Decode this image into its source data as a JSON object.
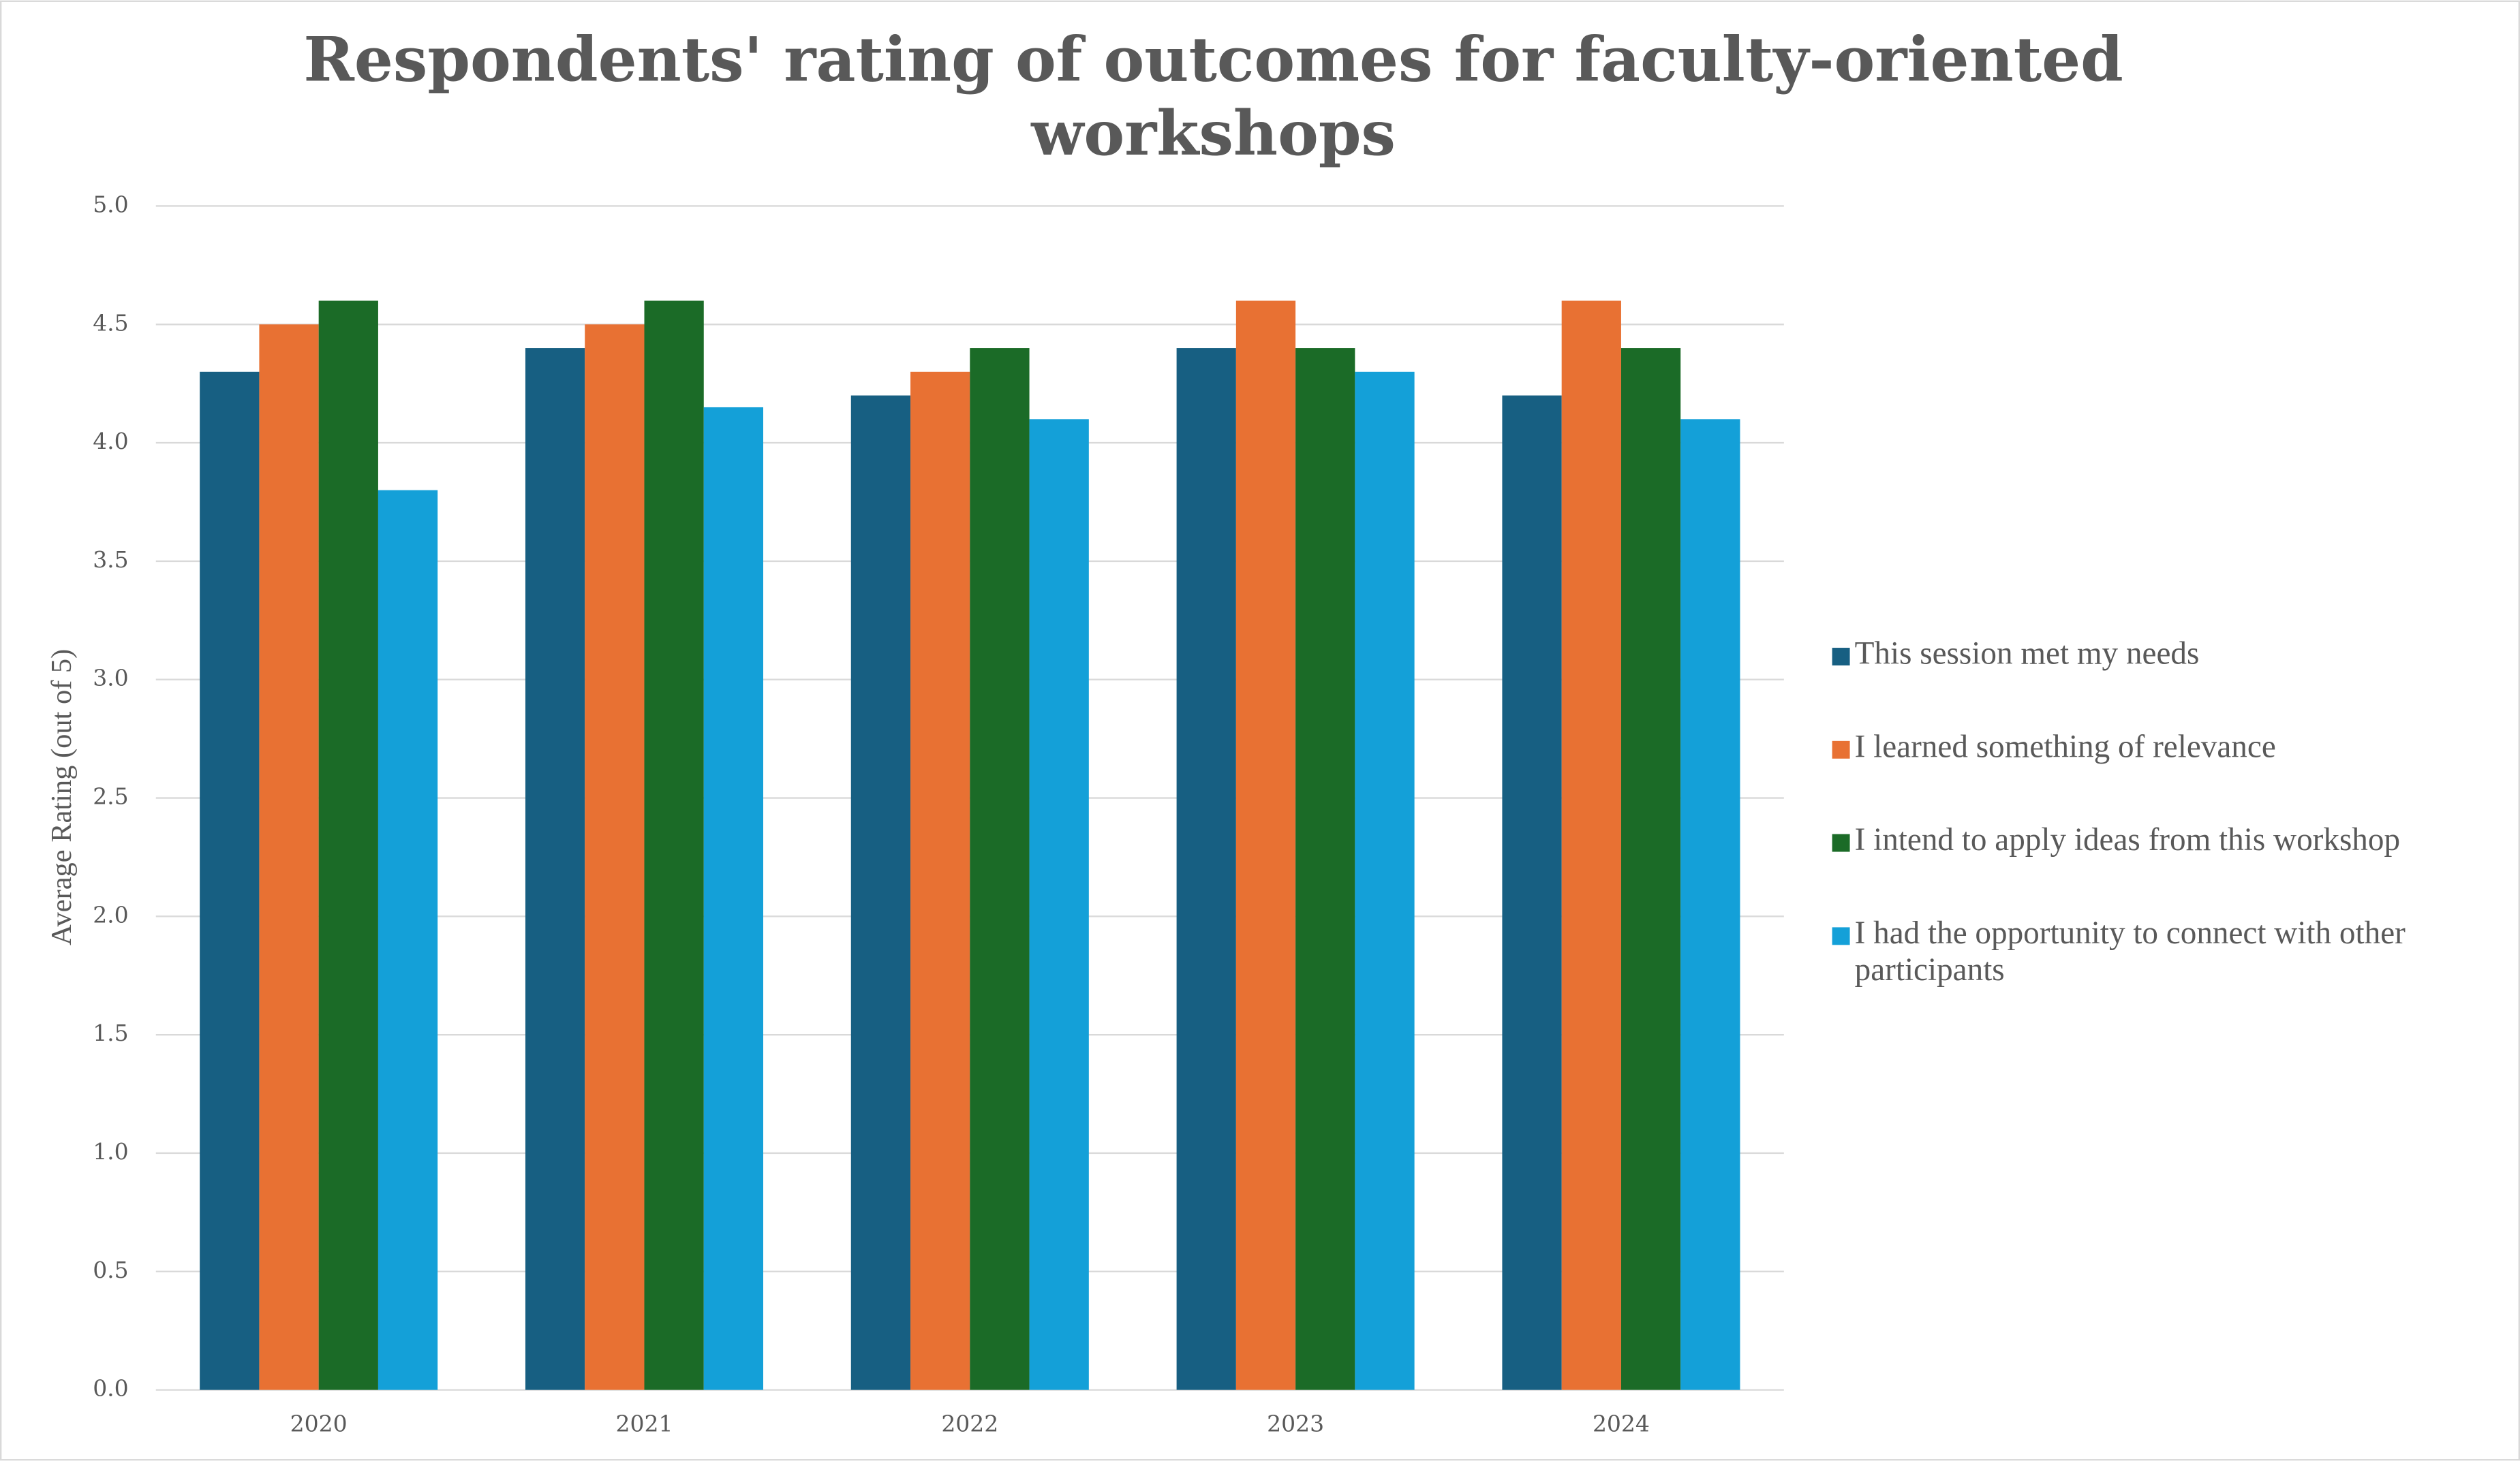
{
  "chart_data": {
    "type": "bar",
    "title": "Respondents' rating of outcomes for faculty-oriented workshops",
    "y_label": "Average Rating (out of 5)",
    "categories": [
      "2020",
      "2021",
      "2022",
      "2023",
      "2024"
    ],
    "series": [
      {
        "name": "This session met my needs",
        "color": "#175f82",
        "values": [
          4.3,
          4.4,
          4.2,
          4.4,
          4.2
        ]
      },
      {
        "name": "I learned something of relevance",
        "color": "#e87133",
        "values": [
          4.5,
          4.5,
          4.3,
          4.6,
          4.6
        ]
      },
      {
        "name": "I intend to apply ideas from this workshop",
        "color": "#1b6b27",
        "values": [
          4.6,
          4.6,
          4.4,
          4.4,
          4.4
        ]
      },
      {
        "name": "I had the opportunity to connect with other participants",
        "color": "#14a0d8",
        "values": [
          3.8,
          4.15,
          4.1,
          4.3,
          4.1
        ]
      }
    ],
    "ylim": [
      0,
      5
    ],
    "yticks": [
      {
        "value": 0,
        "label": "0.0"
      },
      0.5,
      {
        "value": 1,
        "label": "1.0"
      },
      1.5,
      {
        "value": 2,
        "label": "2.0"
      },
      2.5,
      {
        "value": 3,
        "label": "3.0"
      },
      3.5,
      {
        "value": 4,
        "label": "4.0"
      },
      4.5,
      {
        "value": 5,
        "label": "5.0"
      }
    ],
    "grid": true,
    "legend": "right"
  }
}
